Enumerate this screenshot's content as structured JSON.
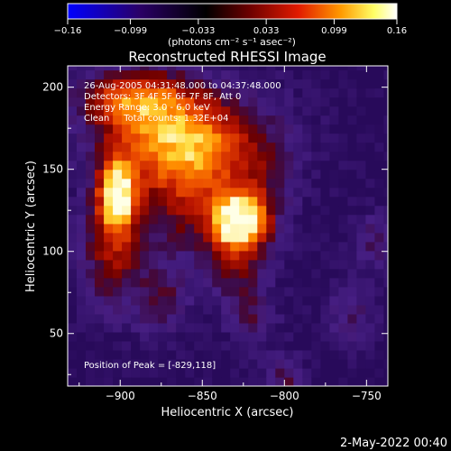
{
  "chart_data": {
    "type": "heatmap",
    "title": "Reconstructed RHESSI Image",
    "xlabel": "Heliocentric X (arcsec)",
    "ylabel": "Heliocentric Y (arcsec)",
    "xlim": [
      -932,
      -737
    ],
    "ylim": [
      18,
      213
    ],
    "x_ticks": [
      -900,
      -850,
      -800,
      -750
    ],
    "x_tick_labels": [
      "−900",
      "−850",
      "−800",
      "−750"
    ],
    "y_ticks": [
      50,
      100,
      150,
      200
    ],
    "y_tick_labels": [
      "50",
      "100",
      "150",
      "200"
    ],
    "colorbar": {
      "range": [
        -0.16,
        0.16
      ],
      "ticks": [
        -0.16,
        -0.099,
        -0.033,
        0.033,
        0.099,
        0.16
      ],
      "tick_labels": [
        "−0.16",
        "−0.099",
        "−0.033",
        "0.033",
        "0.099",
        "0.16"
      ],
      "unit_label": "(photons cm⁻² s⁻¹ asec⁻²)",
      "colors": [
        "#0000ff",
        "#2a0066",
        "#000000",
        "#6a0000",
        "#e11a00",
        "#ff9a00",
        "#ffff66",
        "#ffffff"
      ]
    },
    "annotations": [
      "26-Aug-2005 04:31:48.000 to 04:37:48.000",
      "Detectors: 3F 4F 5F 6F 7F 8F, Att 0",
      "Energy Range: 3.0 - 6.0 keV",
      "Clean     Total counts: 1.32E+04"
    ],
    "peak_label": "Position of Peak = [-829,118]",
    "sources": [
      {
        "x": -829,
        "y": 118,
        "value": 0.16
      },
      {
        "x": -902,
        "y": 135,
        "value": 0.14
      }
    ],
    "background_value": -0.08
  },
  "footer_date": "2-May-2022 00:40"
}
